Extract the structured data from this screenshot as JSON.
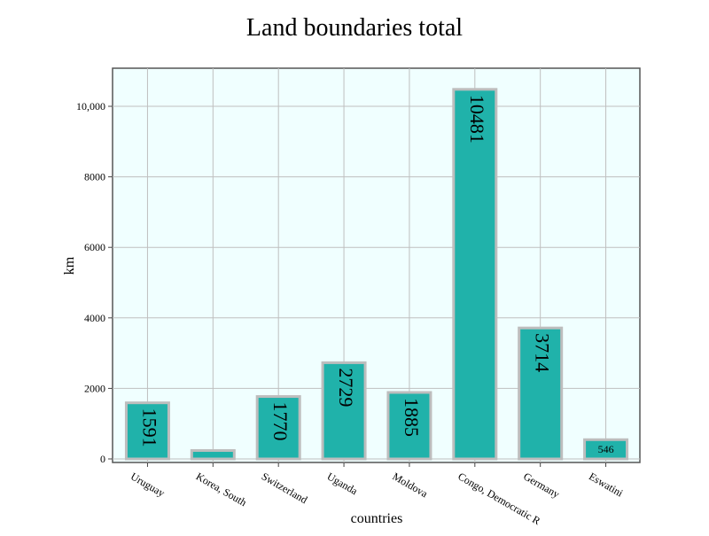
{
  "chart_data": {
    "type": "bar",
    "title": "Land boundaries total",
    "xlabel": "countries",
    "ylabel": "km",
    "categories": [
      "Uruguay",
      "Korea, South",
      "Switzerland",
      "Uganda",
      "Moldova",
      "Congo, Democratic Republic of the",
      "Germany",
      "Eswatini"
    ],
    "category_labels_shown": [
      "Uruguay",
      "Korea, South",
      "Switzerland",
      "Uganda",
      "Moldova",
      "Congo, Democratic R",
      "Germany",
      "Eswatini"
    ],
    "values": [
      1591,
      238,
      1770,
      2729,
      1885,
      10481,
      3714,
      546
    ],
    "data_labels": [
      "1591",
      "",
      "1770",
      "2729",
      "1885",
      "10481",
      "3714",
      "546"
    ],
    "ylim": [
      0,
      11000
    ],
    "yticks": [
      0,
      2000,
      4000,
      6000,
      8000,
      10000
    ],
    "ytick_labels": [
      "0",
      "2000",
      "4000",
      "6000",
      "8000",
      "10,000"
    ],
    "grid": true,
    "legend": "none",
    "colors": {
      "bar_fill": "#20b2aa",
      "bar_stroke": "#bdbdbd",
      "plot_background": "#f0ffff",
      "grid": "#bfbfbf",
      "axis": "#444444",
      "text": "#000000"
    }
  }
}
